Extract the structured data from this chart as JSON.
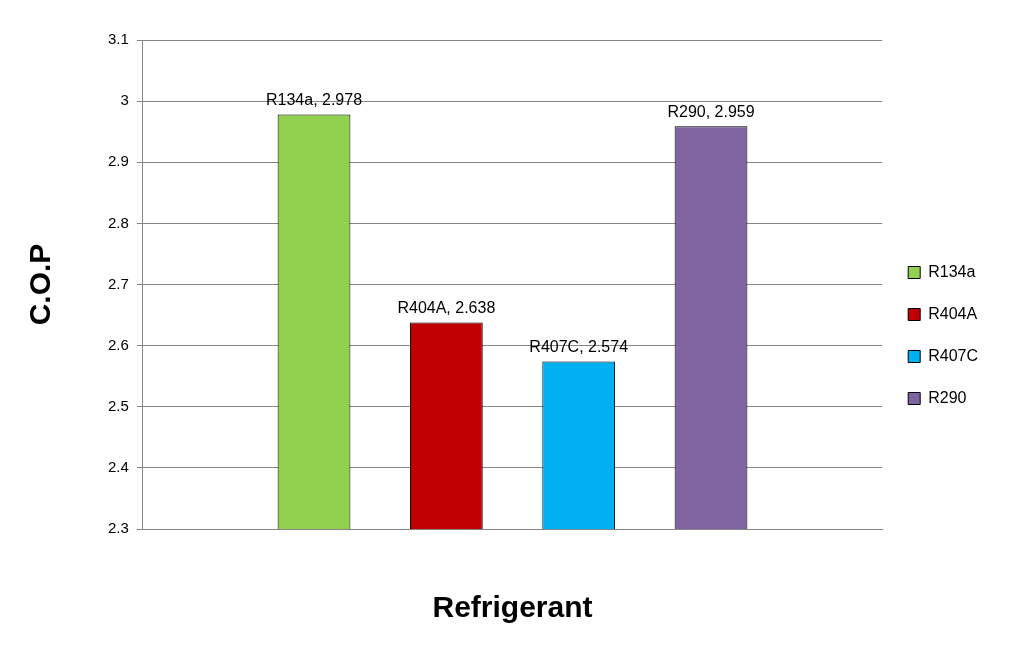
{
  "chart_data": {
    "type": "bar",
    "xlabel": "Refrigerant",
    "ylabel": "C.O.P",
    "categories": [
      null
    ],
    "series": [
      {
        "name": "R134a",
        "color": "#92d050",
        "values": [
          2.978
        ],
        "value_labels": [
          "R134a, 2.978"
        ]
      },
      {
        "name": "R404A",
        "color": "#c00000",
        "values": [
          2.638
        ],
        "value_labels": [
          "R404A, 2.638"
        ]
      },
      {
        "name": "R407C",
        "color": "#00b0f0",
        "values": [
          2.574
        ],
        "value_labels": [
          "R407C, 2.574"
        ]
      },
      {
        "name": "R290",
        "color": "#8064a2",
        "values": [
          2.959
        ],
        "value_labels": [
          "R290, 2.959"
        ]
      }
    ],
    "ylim": [
      2.3,
      3.1
    ],
    "yticks": [
      2.3,
      2.4,
      2.5,
      2.6,
      2.7,
      2.8,
      2.9,
      3,
      3.1
    ],
    "grid": "y",
    "legend": "right"
  }
}
